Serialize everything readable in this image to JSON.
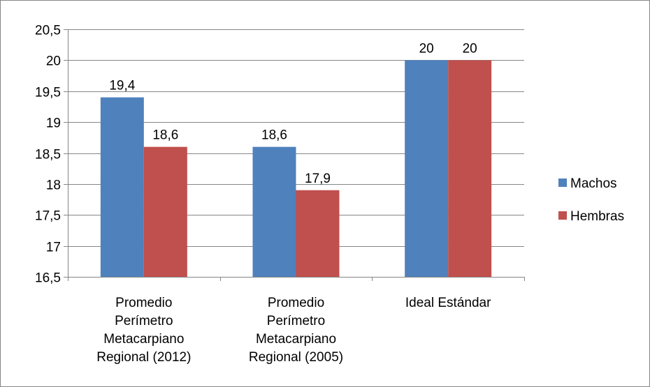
{
  "chart_data": {
    "type": "bar",
    "title": "",
    "xlabel": "",
    "ylabel": "",
    "categories": [
      [
        "Promedio",
        "Perímetro",
        "Metacarpiano",
        "Regional (2012)"
      ],
      [
        "Promedio",
        "Perímetro",
        "Metacarpiano",
        "Regional (2005)"
      ],
      [
        "Ideal Estándar"
      ]
    ],
    "series": [
      {
        "name": "Machos",
        "color": "#4f81bd",
        "values": [
          19.4,
          18.6,
          20
        ]
      },
      {
        "name": "Hembras",
        "color": "#c0504d",
        "values": [
          18.6,
          17.9,
          20
        ]
      }
    ],
    "data_labels": [
      [
        "19,4",
        "18,6",
        "20"
      ],
      [
        "18,6",
        "17,9",
        "20"
      ]
    ],
    "ylim": [
      16.5,
      20.5
    ],
    "yticks": [
      16.5,
      17,
      17.5,
      18,
      18.5,
      19,
      19.5,
      20,
      20.5
    ],
    "ytick_labels": [
      "16,5",
      "17",
      "17,5",
      "18",
      "18,5",
      "19",
      "19,5",
      "20",
      "20,5"
    ],
    "grid": true,
    "legend": "right"
  }
}
